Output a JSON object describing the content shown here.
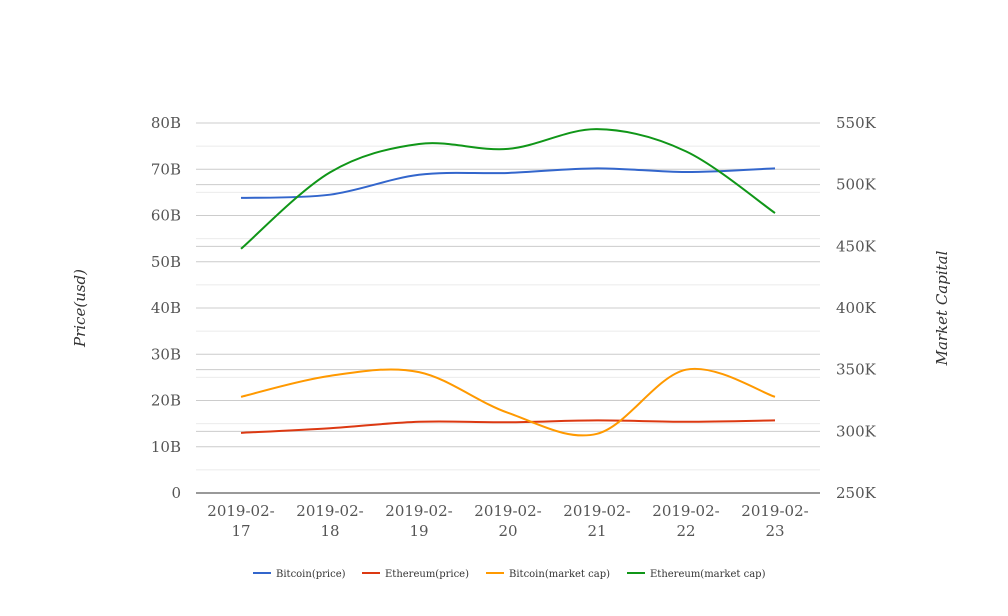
{
  "chart_data": {
    "type": "line",
    "categories": [
      "2019-02-17",
      "2019-02-18",
      "2019-02-19",
      "2019-02-20",
      "2019-02-21",
      "2019-02-22",
      "2019-02-23"
    ],
    "category_display": [
      [
        "2019-02-",
        "17"
      ],
      [
        "2019-02-",
        "18"
      ],
      [
        "2019-02-",
        "19"
      ],
      [
        "2019-02-",
        "20"
      ],
      [
        "2019-02-",
        "21"
      ],
      [
        "2019-02-",
        "22"
      ],
      [
        "2019-02-",
        "23"
      ]
    ],
    "ylabel_left": "Price(usd)",
    "ylabel_right": "Market Capital",
    "ylim_left": [
      0,
      80000000000
    ],
    "ylim_right": [
      250000,
      550000
    ],
    "yticks_left": [
      "0",
      "10B",
      "20B",
      "30B",
      "40B",
      "50B",
      "60B",
      "70B",
      "80B"
    ],
    "yticks_right": [
      "250K",
      "300K",
      "350K",
      "400K",
      "450K",
      "500K",
      "550K"
    ],
    "grid": true,
    "legend_position": "bottom",
    "series": [
      {
        "name": "Bitcoin(price)",
        "axis": "left",
        "color": "#3366cc",
        "values": [
          63800000000,
          64500000000,
          68800000000,
          69200000000,
          70200000000,
          69400000000,
          70200000000
        ]
      },
      {
        "name": "Ethereum(price)",
        "axis": "left",
        "color": "#dc3912",
        "values": [
          13000000000,
          14000000000,
          15400000000,
          15300000000,
          15700000000,
          15400000000,
          15700000000
        ]
      },
      {
        "name": "Bitcoin(market cap)",
        "axis": "right",
        "color": "#ff9900",
        "values": [
          328000,
          345000,
          348000,
          315000,
          298000,
          350000,
          328000
        ]
      },
      {
        "name": "Ethereum(market cap)",
        "axis": "right",
        "color": "#109618",
        "values": [
          448000,
          510000,
          533000,
          529000,
          545000,
          527000,
          477000
        ]
      }
    ]
  }
}
